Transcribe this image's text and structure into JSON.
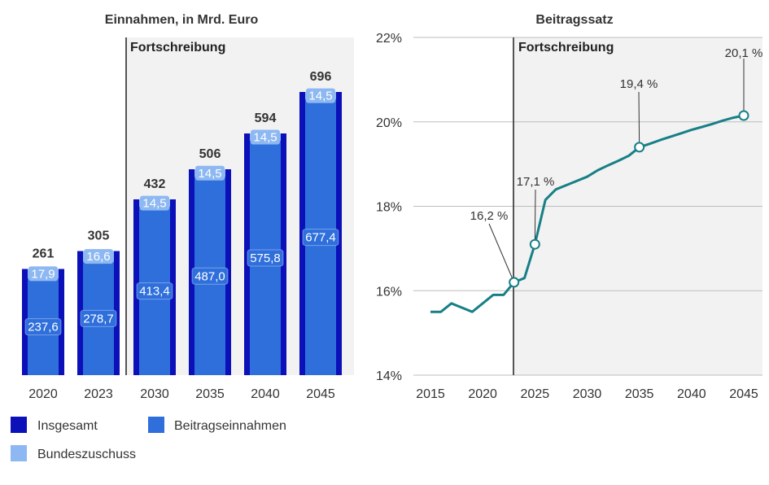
{
  "chart_data": [
    {
      "type": "bar",
      "title": "Einnahmen, in Mrd. Euro",
      "projection_label": "Fortschreibung",
      "categories": [
        "2020",
        "2023",
        "2030",
        "2035",
        "2040",
        "2045"
      ],
      "totals": [
        261,
        305,
        432,
        506,
        594,
        696
      ],
      "totals_label": [
        "261",
        "305",
        "432",
        "506",
        "594",
        "696"
      ],
      "series": [
        {
          "name": "Insgesamt",
          "values": [
            261,
            305,
            432,
            506,
            594,
            696
          ],
          "color": "#0b10b8"
        },
        {
          "name": "Beitragseinnahmen",
          "values": [
            237.6,
            278.7,
            413.4,
            487.0,
            575.8,
            677.4
          ],
          "labels": [
            "237,6",
            "278,7",
            "413,4",
            "487,0",
            "575,8",
            "677,4"
          ],
          "color": "#2f6fdc"
        },
        {
          "name": "Bundeszuschuss",
          "values": [
            17.9,
            16.6,
            14.5,
            14.5,
            14.5,
            14.5
          ],
          "labels": [
            "17,9",
            "16,6",
            "14,5",
            "14,5",
            "14,5",
            "14,5"
          ],
          "color": "#8db8f2"
        }
      ],
      "ylim": [
        0,
        720
      ]
    },
    {
      "type": "line",
      "title": "Beitragssatz",
      "projection_label": "Fortschreibung",
      "projection_start": 2023,
      "x": [
        2015,
        2016,
        2017,
        2018,
        2019,
        2020,
        2021,
        2022,
        2023,
        2024,
        2025,
        2026,
        2027,
        2028,
        2029,
        2030,
        2031,
        2032,
        2033,
        2034,
        2035,
        2036,
        2037,
        2038,
        2039,
        2040,
        2041,
        2042,
        2043,
        2044,
        2045
      ],
      "y": [
        15.5,
        15.5,
        15.7,
        15.6,
        15.5,
        15.7,
        15.9,
        15.9,
        16.2,
        16.3,
        17.1,
        18.15,
        18.4,
        18.5,
        18.6,
        18.7,
        18.85,
        18.97,
        19.08,
        19.2,
        19.4,
        19.48,
        19.57,
        19.65,
        19.73,
        19.81,
        19.88,
        19.95,
        20.03,
        20.1,
        20.15
      ],
      "ylim": [
        14,
        22
      ],
      "yticks": [
        "14%",
        "16%",
        "18%",
        "20%",
        "22%"
      ],
      "xticks": [
        "2015",
        "2020",
        "2025",
        "2030",
        "2035",
        "2040",
        "2045"
      ],
      "line_color": "#177f86",
      "markers": [
        {
          "x": 2023,
          "y": 16.2,
          "label": "16,2 %"
        },
        {
          "x": 2025,
          "y": 17.1,
          "label": "17,1 %"
        },
        {
          "x": 2035,
          "y": 19.4,
          "label": "19,4 %"
        },
        {
          "x": 2045,
          "y": 20.15,
          "label": "20,1 %"
        }
      ]
    }
  ],
  "legend": [
    {
      "label": "Insgesamt",
      "color": "#0b10b8"
    },
    {
      "label": "Beitragseinnahmen",
      "color": "#2f6fdc"
    },
    {
      "label": "Bundeszuschuss",
      "color": "#8db8f2"
    }
  ]
}
